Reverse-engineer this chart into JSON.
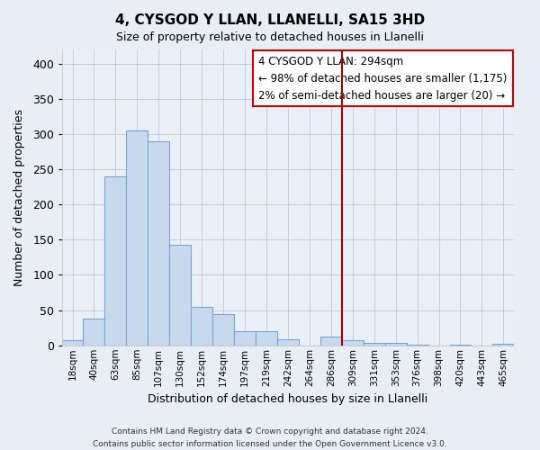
{
  "title": "4, CYSGOD Y LLAN, LLANELLI, SA15 3HD",
  "subtitle": "Size of property relative to detached houses in Llanelli",
  "xlabel": "Distribution of detached houses by size in Llanelli",
  "ylabel": "Number of detached properties",
  "bin_labels": [
    "18sqm",
    "40sqm",
    "63sqm",
    "85sqm",
    "107sqm",
    "130sqm",
    "152sqm",
    "174sqm",
    "197sqm",
    "219sqm",
    "242sqm",
    "264sqm",
    "286sqm",
    "309sqm",
    "331sqm",
    "353sqm",
    "376sqm",
    "398sqm",
    "420sqm",
    "443sqm",
    "465sqm"
  ],
  "bar_heights": [
    8,
    38,
    240,
    305,
    290,
    143,
    55,
    44,
    20,
    20,
    9,
    0,
    13,
    7,
    4,
    3,
    1,
    0,
    1,
    0,
    2
  ],
  "bar_color": "#c8d9ed",
  "bar_edge_color": "#6fa8d4",
  "vline_x": 12.5,
  "vline_color": "#aa0000",
  "ylim": [
    0,
    420
  ],
  "yticks": [
    0,
    50,
    100,
    150,
    200,
    250,
    300,
    350,
    400
  ],
  "legend_title": "4 CYSGOD Y LLAN: 294sqm",
  "legend_line1": "← 98% of detached houses are smaller (1,175)",
  "legend_line2": "2% of semi-detached houses are larger (20) →",
  "footer_line1": "Contains HM Land Registry data © Crown copyright and database right 2024.",
  "footer_line2": "Contains public sector information licensed under the Open Government Licence v3.0.",
  "fig_bg_color": "#e8eef5",
  "plot_bg_color": "#eaf0f8",
  "title_fontsize": 11,
  "subtitle_fontsize": 9
}
